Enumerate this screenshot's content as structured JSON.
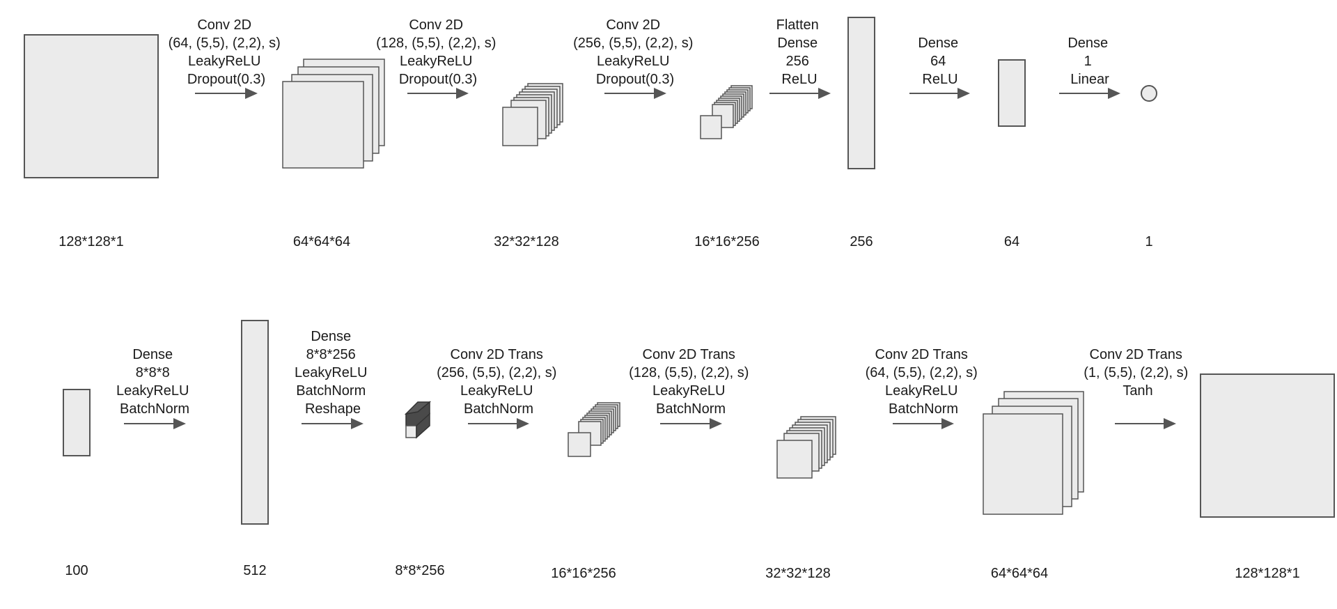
{
  "discriminator": {
    "input_dim": "128*128*1",
    "steps": [
      {
        "lines": [
          "Conv 2D",
          "(64, (5,5), (2,2), s)",
          "LeakyReLU",
          "Dropout(0.3)"
        ],
        "output_dim": "64*64*64"
      },
      {
        "lines": [
          "Conv 2D",
          "(128, (5,5), (2,2), s)",
          "LeakyReLU",
          "Dropout(0.3)"
        ],
        "output_dim": "32*32*128"
      },
      {
        "lines": [
          "Conv 2D",
          "(256, (5,5), (2,2), s)",
          "LeakyReLU",
          "Dropout(0.3)"
        ],
        "output_dim": "16*16*256"
      },
      {
        "lines": [
          "Flatten",
          "Dense",
          "256",
          "ReLU"
        ],
        "output_dim": "256"
      },
      {
        "lines": [
          "Dense",
          "64",
          "ReLU"
        ],
        "output_dim": "64"
      },
      {
        "lines": [
          "Dense",
          "1",
          "Linear"
        ],
        "output_dim": "1"
      }
    ]
  },
  "generator": {
    "input_dim": "100",
    "steps": [
      {
        "lines": [
          "Dense",
          "8*8*8",
          "LeakyReLU",
          "BatchNorm"
        ],
        "output_dim": "512"
      },
      {
        "lines": [
          "Dense",
          "8*8*256",
          "LeakyReLU",
          "BatchNorm",
          "Reshape"
        ],
        "output_dim": "8*8*256"
      },
      {
        "lines": [
          "Conv 2D Trans",
          "(256, (5,5), (2,2), s)",
          "LeakyReLU",
          "BatchNorm"
        ],
        "output_dim": "16*16*256"
      },
      {
        "lines": [
          "Conv 2D Trans",
          "(128, (5,5), (2,2), s)",
          "LeakyReLU",
          "BatchNorm"
        ],
        "output_dim": "32*32*128"
      },
      {
        "lines": [
          "Conv 2D Trans",
          "(64, (5,5), (2,2), s)",
          "LeakyReLU",
          "BatchNorm"
        ],
        "output_dim": "64*64*64"
      },
      {
        "lines": [
          "Conv 2D Trans",
          "(1, (5,5), (2,2), s)",
          "Tanh"
        ],
        "output_dim": "128*128*1"
      }
    ]
  },
  "colors": {
    "fill": "#ebebeb",
    "stroke": "#555555",
    "dark_cube": "#4a4a4a"
  }
}
